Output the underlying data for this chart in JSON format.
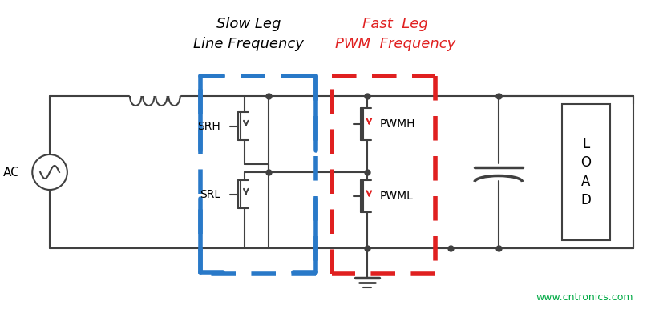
{
  "title": "",
  "bg_color": "#ffffff",
  "circuit_color": "#404040",
  "blue_color": "#2979c8",
  "red_color": "#e02020",
  "green_color": "#00aa44",
  "slow_leg_label1": "Slow Leg",
  "slow_leg_label2": "Line Frequency",
  "fast_leg_label1": "Fast  Leg",
  "fast_leg_label2": "PWM  Frequency",
  "srh_label": "SRH",
  "srl_label": "SRL",
  "pwmh_label": "PWMH",
  "pwml_label": "PWML",
  "ac_label": "AC",
  "load_label": "L\nO\nA\nD",
  "watermark": "www.cntronics.com",
  "fig_width": 8.17,
  "fig_height": 3.96,
  "dpi": 100
}
